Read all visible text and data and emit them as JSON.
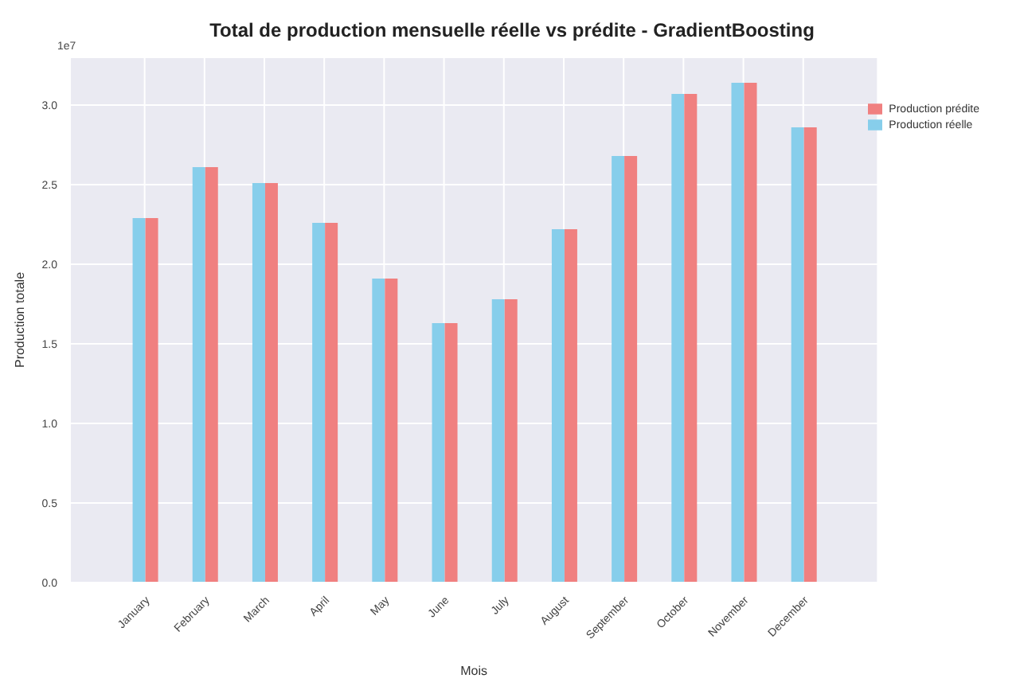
{
  "chart_data": {
    "type": "bar",
    "title": "Total de production mensuelle réelle vs prédite - GradientBoosting",
    "xlabel": "Mois",
    "ylabel": "Production totale",
    "annotations": [
      "1e7"
    ],
    "categories": [
      "January",
      "February",
      "March",
      "April",
      "May",
      "June",
      "July",
      "August",
      "September",
      "October",
      "November",
      "December"
    ],
    "series": [
      {
        "name": "Production réelle",
        "color": "#87ceeb",
        "values": [
          2.29,
          2.61,
          2.51,
          2.26,
          1.91,
          1.63,
          1.78,
          2.22,
          2.68,
          3.07,
          3.14,
          2.86
        ]
      },
      {
        "name": "Production prédite",
        "color": "#f08080",
        "values": [
          2.29,
          2.61,
          2.51,
          2.26,
          1.91,
          1.63,
          1.78,
          2.22,
          2.68,
          3.07,
          3.14,
          2.86
        ]
      }
    ],
    "ylim": [
      0,
      3.3
    ],
    "yticks": [
      {
        "value": 0,
        "label": "0.0"
      },
      {
        "value": 0.5,
        "label": "0.5"
      },
      {
        "value": 1,
        "label": "1.0"
      },
      {
        "value": 1.5,
        "label": "1.5"
      },
      {
        "value": 2,
        "label": "2.0"
      },
      {
        "value": 2.5,
        "label": "2.5"
      },
      {
        "value": 3,
        "label": "3.0"
      }
    ],
    "grid": true,
    "legend": "top right"
  }
}
